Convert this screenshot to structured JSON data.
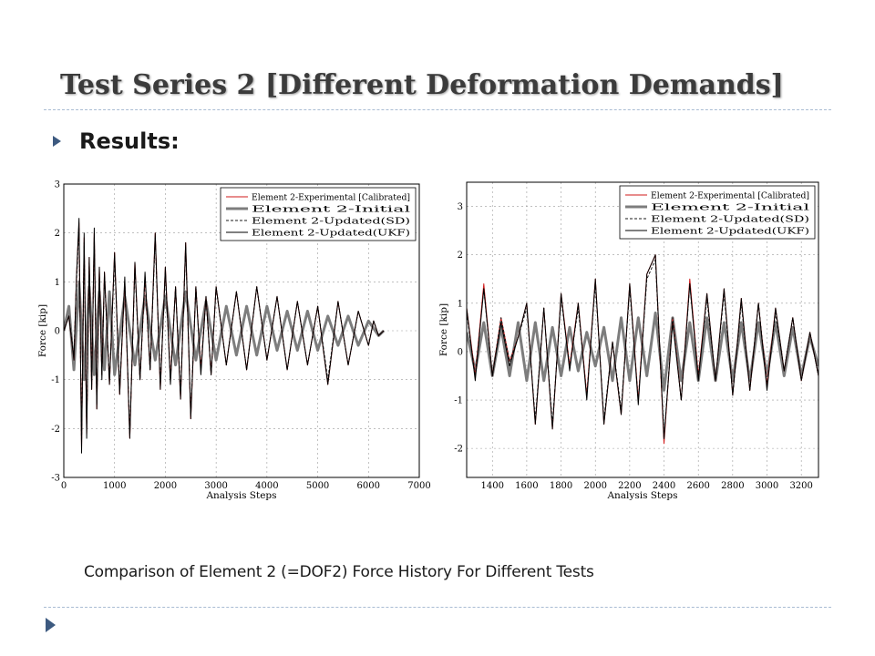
{
  "slide": {
    "title": "Test Series 2 [Different Deformation Demands]",
    "bullet": "Results:",
    "caption": "Comparison of Element 2 (=DOF2) Force History For Different Tests"
  },
  "colors": {
    "experimental": "#d11a1a",
    "initial": "#7d7d7d",
    "sd": "#1a1a1a",
    "ukf": "#000000",
    "accent": "#3d5a80"
  },
  "chart_data": [
    {
      "type": "line",
      "xlabel": "Analysis Steps",
      "ylabel": "Force [kip]",
      "xlim": [
        0,
        7000
      ],
      "ylim": [
        -3,
        3
      ],
      "xticks": [
        0,
        1000,
        2000,
        3000,
        4000,
        5000,
        6000,
        7000
      ],
      "yticks": [
        -3,
        -2,
        -1,
        0,
        1,
        2,
        3
      ],
      "grid": true,
      "legend_position": "top-right",
      "series": [
        {
          "name": "Element 2-Experimental [Calibrated]",
          "x": [
            0,
            100,
            200,
            250,
            300,
            350,
            400,
            450,
            500,
            550,
            600,
            650,
            700,
            750,
            800,
            900,
            1000,
            1100,
            1200,
            1300,
            1400,
            1500,
            1600,
            1700,
            1800,
            1900,
            2000,
            2100,
            2200,
            2300,
            2400,
            2500,
            2600,
            2700,
            2800,
            2900,
            3000,
            3200,
            3400,
            3600,
            3800,
            4000,
            4200,
            4400,
            4600,
            4800,
            5000,
            5200,
            5400,
            5600,
            5800,
            6000,
            6100,
            6200,
            6300
          ],
          "y": [
            0,
            0.3,
            -0.6,
            1.1,
            2.2,
            -2.4,
            1.9,
            -2.1,
            1.5,
            -1.2,
            2.0,
            -1.6,
            1.3,
            -0.9,
            1.2,
            -1.1,
            1.6,
            -1.3,
            1.0,
            -2.2,
            1.4,
            -1.0,
            1.1,
            -0.8,
            2.0,
            -1.2,
            1.3,
            -1.0,
            0.9,
            -1.4,
            1.8,
            -1.8,
            0.9,
            -0.8,
            0.7,
            -0.9,
            0.9,
            -0.7,
            0.8,
            -0.8,
            0.9,
            -0.6,
            0.7,
            -0.8,
            0.6,
            -0.7,
            0.5,
            -1.1,
            0.6,
            -0.7,
            0.4,
            -0.3,
            0.2,
            -0.1,
            0
          ]
        },
        {
          "name": "Element 2-Initial",
          "x": [
            0,
            100,
            200,
            300,
            400,
            500,
            600,
            700,
            800,
            900,
            1000,
            1200,
            1400,
            1600,
            1800,
            2000,
            2200,
            2400,
            2600,
            2800,
            3000,
            3200,
            3400,
            3600,
            3800,
            4000,
            4200,
            4400,
            4600,
            4800,
            5000,
            5200,
            5400,
            5600,
            5800,
            6000,
            6200,
            6300
          ],
          "y": [
            0,
            0.5,
            -0.8,
            1.0,
            -1.0,
            0.9,
            -0.9,
            0.8,
            -0.8,
            0.8,
            -0.9,
            0.7,
            -0.7,
            0.7,
            -0.6,
            0.7,
            -0.7,
            0.8,
            -0.6,
            0.6,
            -0.6,
            0.5,
            -0.5,
            0.5,
            -0.5,
            0.5,
            -0.4,
            0.4,
            -0.4,
            0.4,
            -0.4,
            0.3,
            -0.3,
            0.3,
            -0.3,
            0.2,
            -0.1,
            0
          ]
        },
        {
          "name": "Element 2-Updated(SD)",
          "x": [
            0,
            100,
            200,
            250,
            300,
            350,
            400,
            450,
            500,
            550,
            600,
            650,
            700,
            750,
            800,
            900,
            1000,
            1100,
            1200,
            1300,
            1400,
            1500,
            1600,
            1700,
            1800,
            1900,
            2000,
            2100,
            2200,
            2300,
            2400,
            2500,
            2600,
            2700,
            2800,
            2900,
            3000,
            3200,
            3400,
            3600,
            3800,
            4000,
            4200,
            4400,
            4600,
            4800,
            5000,
            5200,
            5400,
            5600,
            5800,
            6000,
            6100,
            6200,
            6300
          ],
          "y": [
            0,
            0.3,
            -0.5,
            1.0,
            2.1,
            -2.3,
            1.8,
            -2.0,
            1.4,
            -1.1,
            1.9,
            -1.5,
            1.2,
            -0.9,
            1.1,
            -1.0,
            1.5,
            -1.2,
            1.0,
            -2.1,
            1.3,
            -1.0,
            1.1,
            -0.8,
            1.9,
            -1.1,
            1.2,
            -1.0,
            0.9,
            -1.3,
            1.7,
            -1.7,
            0.9,
            -0.8,
            0.7,
            -0.9,
            0.9,
            -0.7,
            0.8,
            -0.8,
            0.9,
            -0.6,
            0.7,
            -0.8,
            0.6,
            -0.7,
            0.5,
            -1.0,
            0.6,
            -0.7,
            0.4,
            -0.3,
            0.2,
            -0.1,
            0
          ]
        },
        {
          "name": "Element 2-Updated(UKF)",
          "x": [
            0,
            100,
            200,
            250,
            300,
            350,
            400,
            450,
            500,
            550,
            600,
            650,
            700,
            750,
            800,
            900,
            1000,
            1100,
            1200,
            1300,
            1400,
            1500,
            1600,
            1700,
            1800,
            1900,
            2000,
            2100,
            2200,
            2300,
            2400,
            2500,
            2600,
            2700,
            2800,
            2900,
            3000,
            3200,
            3400,
            3600,
            3800,
            4000,
            4200,
            4400,
            4600,
            4800,
            5000,
            5200,
            5400,
            5600,
            5800,
            6000,
            6100,
            6200,
            6300
          ],
          "y": [
            0,
            0.3,
            -0.6,
            1.1,
            2.3,
            -2.5,
            2.0,
            -2.2,
            1.5,
            -1.2,
            2.1,
            -1.6,
            1.3,
            -1.0,
            1.2,
            -1.1,
            1.6,
            -1.3,
            1.1,
            -2.2,
            1.4,
            -1.0,
            1.2,
            -0.8,
            2.0,
            -1.2,
            1.3,
            -1.1,
            0.9,
            -1.4,
            1.8,
            -1.8,
            0.9,
            -0.9,
            0.7,
            -0.9,
            0.9,
            -0.7,
            0.8,
            -0.8,
            0.9,
            -0.6,
            0.7,
            -0.8,
            0.6,
            -0.7,
            0.5,
            -1.1,
            0.6,
            -0.7,
            0.4,
            -0.3,
            0.2,
            -0.1,
            0
          ]
        }
      ]
    },
    {
      "type": "line",
      "xlabel": "Analysis Steps",
      "ylabel": "Force [kip]",
      "xlim": [
        1250,
        3300
      ],
      "ylim": [
        -2.6,
        3.5
      ],
      "xticks": [
        1400,
        1600,
        1800,
        2000,
        2200,
        2400,
        2600,
        2800,
        3000,
        3200
      ],
      "yticks": [
        -2,
        -1,
        0,
        1,
        2,
        3
      ],
      "grid": true,
      "legend_position": "top-right",
      "series": [
        {
          "name": "Element 2-Experimental [Calibrated]",
          "x": [
            1250,
            1300,
            1350,
            1400,
            1450,
            1500,
            1550,
            1600,
            1650,
            1700,
            1750,
            1800,
            1850,
            1900,
            1950,
            2000,
            2050,
            2100,
            2150,
            2200,
            2250,
            2300,
            2350,
            2400,
            2450,
            2500,
            2550,
            2600,
            2650,
            2700,
            2750,
            2800,
            2850,
            2900,
            2950,
            3000,
            3050,
            3100,
            3150,
            3200,
            3250,
            3300
          ],
          "y": [
            0.9,
            -0.5,
            1.4,
            -0.5,
            0.7,
            -0.2,
            0.3,
            1.0,
            -1.5,
            0.9,
            -1.6,
            1.2,
            -0.3,
            1.0,
            -0.9,
            1.5,
            -1.5,
            0.2,
            -1.3,
            1.4,
            -1.0,
            1.6,
            2.0,
            -1.9,
            0.7,
            -1.0,
            1.5,
            -0.5,
            1.2,
            -0.6,
            1.3,
            -0.9,
            1.1,
            -0.8,
            1.0,
            -0.7,
            0.9,
            -0.4,
            0.7,
            -0.6,
            0.4,
            -0.5
          ]
        },
        {
          "name": "Element 2-Initial",
          "x": [
            1250,
            1300,
            1350,
            1400,
            1450,
            1500,
            1550,
            1600,
            1650,
            1700,
            1750,
            1800,
            1850,
            1900,
            1950,
            2000,
            2050,
            2100,
            2150,
            2200,
            2250,
            2300,
            2350,
            2400,
            2450,
            2500,
            2550,
            2600,
            2650,
            2700,
            2750,
            2800,
            2850,
            2900,
            2950,
            3000,
            3050,
            3100,
            3150,
            3200,
            3250,
            3300
          ],
          "y": [
            0.4,
            -0.4,
            0.6,
            -0.5,
            0.5,
            -0.5,
            0.6,
            -0.6,
            0.6,
            -0.6,
            0.5,
            -0.5,
            0.5,
            -0.4,
            0.4,
            -0.3,
            0.5,
            -0.6,
            0.7,
            -0.6,
            0.7,
            -0.5,
            0.8,
            -0.8,
            0.7,
            -0.6,
            0.6,
            -0.6,
            0.7,
            -0.6,
            0.6,
            -0.6,
            0.6,
            -0.6,
            0.6,
            -0.5,
            0.6,
            -0.5,
            0.5,
            -0.5,
            0.3,
            -0.3
          ]
        },
        {
          "name": "Element 2-Updated(SD)",
          "x": [
            1250,
            1300,
            1350,
            1400,
            1450,
            1500,
            1550,
            1600,
            1650,
            1700,
            1750,
            1800,
            1850,
            1900,
            1950,
            2000,
            2050,
            2100,
            2150,
            2200,
            2250,
            2300,
            2350,
            2400,
            2450,
            2500,
            2550,
            2600,
            2650,
            2700,
            2750,
            2800,
            2850,
            2900,
            2950,
            3000,
            3050,
            3100,
            3150,
            3200,
            3250,
            3300
          ],
          "y": [
            0.8,
            -0.5,
            1.3,
            -0.5,
            0.7,
            -0.2,
            0.3,
            0.9,
            -1.4,
            0.9,
            -1.5,
            1.1,
            -0.3,
            0.9,
            -0.9,
            1.4,
            -1.4,
            0.2,
            -1.2,
            1.3,
            -1.0,
            1.5,
            1.9,
            -1.8,
            0.7,
            -1.0,
            1.4,
            -0.5,
            1.1,
            -0.6,
            1.2,
            -0.9,
            1.0,
            -0.8,
            1.0,
            -0.7,
            0.8,
            -0.4,
            0.7,
            -0.6,
            0.4,
            -0.5
          ]
        },
        {
          "name": "Element 2-Updated(UKF)",
          "x": [
            1250,
            1300,
            1350,
            1400,
            1450,
            1500,
            1550,
            1600,
            1650,
            1700,
            1750,
            1800,
            1850,
            1900,
            1950,
            2000,
            2050,
            2100,
            2150,
            2200,
            2250,
            2300,
            2350,
            2400,
            2450,
            2500,
            2550,
            2600,
            2650,
            2700,
            2750,
            2800,
            2850,
            2900,
            2950,
            3000,
            3050,
            3100,
            3150,
            3200,
            3250,
            3300
          ],
          "y": [
            0.9,
            -0.6,
            1.3,
            -0.5,
            0.6,
            -0.3,
            0.3,
            1.0,
            -1.5,
            0.9,
            -1.6,
            1.2,
            -0.4,
            1.0,
            -1.0,
            1.5,
            -1.5,
            0.2,
            -1.3,
            1.4,
            -1.1,
            1.6,
            2.0,
            -1.8,
            0.6,
            -1.0,
            1.4,
            -0.6,
            1.2,
            -0.6,
            1.3,
            -0.9,
            1.1,
            -0.8,
            1.0,
            -0.8,
            0.9,
            -0.4,
            0.7,
            -0.6,
            0.4,
            -0.5
          ]
        }
      ]
    }
  ]
}
